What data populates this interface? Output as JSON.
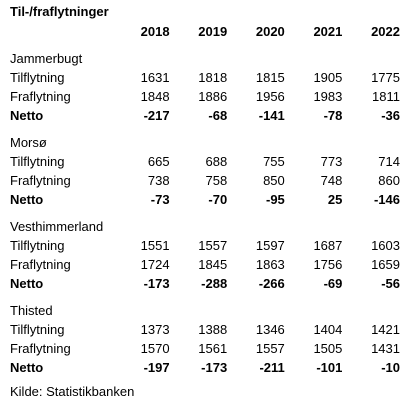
{
  "title": "Til-/fraflytninger",
  "years": [
    "2018",
    "2019",
    "2020",
    "2021",
    "2022"
  ],
  "regions": [
    {
      "name": "Jammerbugt",
      "rows": [
        {
          "label": "Tilflytning",
          "values": [
            "1631",
            "1818",
            "1815",
            "1905",
            "1775"
          ]
        },
        {
          "label": "Fraflytning",
          "values": [
            "1848",
            "1886",
            "1956",
            "1983",
            "1811"
          ]
        },
        {
          "label": "Netto",
          "values": [
            "-217",
            "-68",
            "-141",
            "-78",
            "-36"
          ]
        }
      ]
    },
    {
      "name": "Morsø",
      "rows": [
        {
          "label": "Tilflytning",
          "values": [
            "665",
            "688",
            "755",
            "773",
            "714"
          ]
        },
        {
          "label": "Fraflytning",
          "values": [
            "738",
            "758",
            "850",
            "748",
            "860"
          ]
        },
        {
          "label": "Netto",
          "values": [
            "-73",
            "-70",
            "-95",
            "25",
            "-146"
          ]
        }
      ]
    },
    {
      "name": "Vesthimmerland",
      "rows": [
        {
          "label": "Tilflytning",
          "values": [
            "1551",
            "1557",
            "1597",
            "1687",
            "1603"
          ]
        },
        {
          "label": "Fraflytning",
          "values": [
            "1724",
            "1845",
            "1863",
            "1756",
            "1659"
          ]
        },
        {
          "label": "Netto",
          "values": [
            "-173",
            "-288",
            "-266",
            "-69",
            "-56"
          ]
        }
      ]
    },
    {
      "name": "Thisted",
      "rows": [
        {
          "label": "Tilflytning",
          "values": [
            "1373",
            "1388",
            "1346",
            "1404",
            "1421"
          ]
        },
        {
          "label": "Fraflytning",
          "values": [
            "1570",
            "1561",
            "1557",
            "1505",
            "1431"
          ]
        },
        {
          "label": "Netto",
          "values": [
            "-197",
            "-173",
            "-211",
            "-101",
            "-10"
          ]
        }
      ]
    }
  ],
  "source": "Kilde: Statistikbanken"
}
